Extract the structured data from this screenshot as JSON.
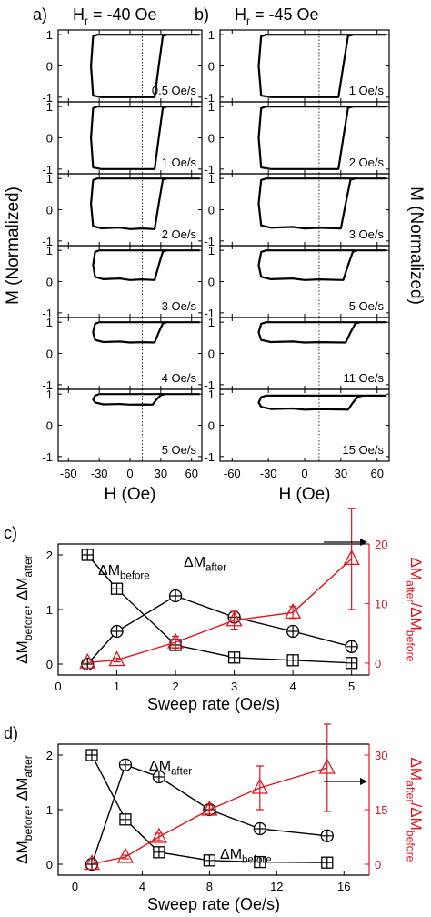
{
  "chart_data": [
    {
      "panel_id": "a)",
      "type": "line",
      "title": "H",
      "title_sub": "r",
      "title_value": " = -40 Oe",
      "xlabel": "H (Oe)",
      "ylabel": "M (Normalized)",
      "xlim": [
        -70,
        70
      ],
      "ylim": [
        -1.15,
        1.15
      ],
      "x_ticks": [
        -60,
        -30,
        0,
        30,
        60
      ],
      "y_ticks": [
        1,
        0,
        -1
      ],
      "vline_x": 12,
      "loops": [
        {
          "rate_label": "0.5 Oe/s",
          "lower": -1.0,
          "upper": 1.0,
          "left_x": -38,
          "right_x": 28,
          "bump": 0.0
        },
        {
          "rate_label": "1 Oe/s",
          "lower": -1.0,
          "upper": 1.0,
          "left_x": -38,
          "right_x": 28,
          "bump": 0.0
        },
        {
          "rate_label": "2 Oe/s",
          "lower": -0.62,
          "upper": 1.0,
          "left_x": -38,
          "right_x": 28,
          "bump": 0.05
        },
        {
          "rate_label": "3 Oe/s",
          "lower": 0.05,
          "upper": 1.0,
          "left_x": -36,
          "right_x": 28,
          "bump": 0.05
        },
        {
          "rate_label": "4 Oe/s",
          "lower": 0.35,
          "upper": 1.0,
          "left_x": -36,
          "right_x": 28,
          "bump": 0.03
        },
        {
          "rate_label": "5 Oe/s",
          "lower": 0.66,
          "upper": 1.0,
          "left_x": -36,
          "right_x": 26,
          "bump": 0.02
        }
      ]
    },
    {
      "panel_id": "b)",
      "type": "line",
      "title": "H",
      "title_sub": "r",
      "title_value": " = -45 Oe",
      "xlabel": "H (Oe)",
      "ylabel": "M (Normalized)",
      "xlim": [
        -70,
        70
      ],
      "ylim": [
        -1.15,
        1.15
      ],
      "x_ticks": [
        -60,
        -30,
        0,
        30,
        60
      ],
      "y_ticks": [
        1,
        0,
        -1
      ],
      "vline_x": 12,
      "loops": [
        {
          "rate_label": "1 Oe/s",
          "lower": -1.0,
          "upper": 1.0,
          "left_x": -38,
          "right_x": 32,
          "bump": 0.0
        },
        {
          "rate_label": "2 Oe/s",
          "lower": -1.0,
          "upper": 1.0,
          "left_x": -38,
          "right_x": 32,
          "bump": 0.0
        },
        {
          "rate_label": "3 Oe/s",
          "lower": -0.6,
          "upper": 1.0,
          "left_x": -38,
          "right_x": 34,
          "bump": 0.05
        },
        {
          "rate_label": "5 Oe/s",
          "lower": 0.05,
          "upper": 1.0,
          "left_x": -38,
          "right_x": 36,
          "bump": 0.05
        },
        {
          "rate_label": "11 Oe/s",
          "lower": 0.35,
          "upper": 1.0,
          "left_x": -38,
          "right_x": 38,
          "bump": 0.03
        },
        {
          "rate_label": "15 Oe/s",
          "lower": 0.5,
          "upper": 0.95,
          "left_x": -38,
          "right_x": 40,
          "bump": 0.04
        }
      ]
    },
    {
      "panel_id": "c)",
      "type": "line",
      "xlabel": "Sweep rate (Oe/s)",
      "ylabel_left": "ΔM",
      "ylabel_left_sub1": "before",
      "ylabel_left_mid": ", ΔM",
      "ylabel_left_sub2": "after",
      "ylabel_right": "ΔM",
      "ylabel_right_sub1": "after",
      "ylabel_right_mid": "/ΔM",
      "ylabel_right_sub2": "before",
      "xlim": [
        0,
        5.3
      ],
      "ylim_left": [
        -0.2,
        2.2
      ],
      "ylim_right": [
        -2,
        20
      ],
      "x_ticks": [
        0,
        1,
        2,
        3,
        4,
        5
      ],
      "y_ticks_left": [
        0,
        1,
        2
      ],
      "y_ticks_right": [
        0,
        10,
        20
      ],
      "series": [
        {
          "label": "ΔM",
          "label_sub": "before",
          "axis": "left",
          "marker": "square-plus",
          "x": [
            0.5,
            1,
            2,
            3,
            4,
            5
          ],
          "values": [
            2.0,
            1.38,
            0.35,
            0.12,
            0.07,
            0.02
          ]
        },
        {
          "label": "ΔM",
          "label_sub": "after",
          "axis": "left",
          "marker": "circle-plus",
          "x": [
            0.5,
            1,
            2,
            3,
            4,
            5
          ],
          "values": [
            0.0,
            0.6,
            1.25,
            0.86,
            0.6,
            0.32
          ]
        },
        {
          "axis": "right",
          "marker": "triangle",
          "color": "#e0141e",
          "x": [
            0.5,
            1,
            2,
            3,
            4,
            5
          ],
          "values": [
            0.1,
            0.5,
            3.5,
            7.2,
            8.5,
            17.5
          ],
          "err": [
            0,
            0.3,
            1.0,
            1.5,
            1.0,
            8.5
          ]
        }
      ]
    },
    {
      "panel_id": "d)",
      "type": "line",
      "xlabel": "Sweep rate (Oe/s)",
      "ylabel_left": "ΔM",
      "ylabel_left_sub1": "before",
      "ylabel_left_mid": ", ΔM",
      "ylabel_left_sub2": "after",
      "ylabel_right": "ΔM",
      "ylabel_right_sub1": "after",
      "ylabel_right_mid": "/ΔM",
      "ylabel_right_sub2": "before",
      "xlim": [
        -1,
        17.5
      ],
      "ylim_left": [
        -0.2,
        2.2
      ],
      "ylim_right": [
        -3,
        33
      ],
      "x_ticks": [
        0,
        4,
        8,
        12,
        16
      ],
      "y_ticks_left": [
        0,
        1,
        2
      ],
      "y_ticks_right": [
        0,
        15,
        30
      ],
      "series": [
        {
          "label": "ΔM",
          "label_sub": "before",
          "axis": "left",
          "marker": "square-plus",
          "x": [
            1,
            3,
            5,
            8,
            11,
            15
          ],
          "values": [
            2.0,
            0.82,
            0.22,
            0.07,
            0.04,
            0.03
          ]
        },
        {
          "label": "ΔM",
          "label_sub": "after",
          "axis": "left",
          "marker": "circle-plus",
          "x": [
            1,
            3,
            5,
            8,
            11,
            15
          ],
          "values": [
            0.0,
            1.82,
            1.6,
            1.0,
            0.65,
            0.52
          ]
        },
        {
          "axis": "right",
          "marker": "triangle",
          "color": "#e0141e",
          "x": [
            1,
            3,
            5,
            8,
            11,
            15
          ],
          "values": [
            0.1,
            2.0,
            7.5,
            15.0,
            21.0,
            26.5
          ],
          "err": [
            0,
            0.5,
            1.0,
            1.2,
            6.0,
            12.0
          ]
        }
      ]
    }
  ]
}
